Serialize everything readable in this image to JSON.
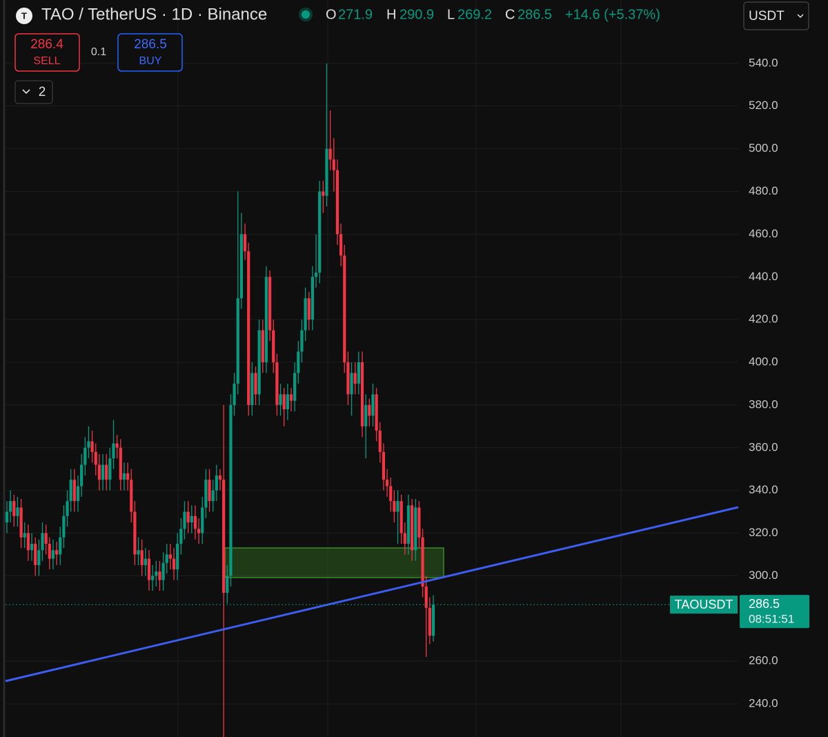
{
  "chart_data": {
    "type": "candlestick",
    "title": "TAO / TetherUS · 1D · Binance",
    "ohlc_labels": [
      "O",
      "H",
      "L",
      "C"
    ],
    "change": "+14.6 (+5.37%)",
    "currency": "USDT",
    "sell": {
      "price": 286.4,
      "label": "SELL"
    },
    "quantity": 0.1,
    "buy": {
      "price": 286.5,
      "label": "BUY"
    },
    "indicator_count": 2,
    "price_label": {
      "symbol": "TAOUSDT",
      "countdown": "08:51:51"
    },
    "up_color": "#089981",
    "down_color": "#f23645",
    "ylim": [
      224.5,
      569.7
    ],
    "yticks": [
      {
        "value": 240,
        "label": "240.0"
      },
      {
        "value": 260,
        "label": "260.0"
      },
      {
        "value": 300,
        "label": "300.0"
      },
      {
        "value": 320,
        "label": "320.0"
      },
      {
        "value": 340,
        "label": "340.0"
      },
      {
        "value": 360,
        "label": "360.0"
      },
      {
        "value": 380,
        "label": "380.0"
      },
      {
        "value": 400,
        "label": "400.0"
      },
      {
        "value": 420,
        "label": "420.0"
      },
      {
        "value": 440,
        "label": "440.0"
      },
      {
        "value": 460,
        "label": "460.0"
      },
      {
        "value": 480,
        "label": "480.0"
      },
      {
        "value": 500,
        "label": "500.0"
      },
      {
        "value": 520,
        "label": "520.0"
      },
      {
        "value": 540,
        "label": "540.0"
      }
    ],
    "grid": true,
    "candles": [
      [
        325,
        335,
        320,
        330
      ],
      [
        330,
        340,
        325,
        335
      ],
      [
        335,
        338,
        323,
        328
      ],
      [
        328,
        337,
        323,
        332
      ],
      [
        332,
        336,
        313,
        318
      ],
      [
        318,
        325,
        313,
        320
      ],
      [
        320,
        324,
        307,
        312
      ],
      [
        312,
        320,
        307,
        315
      ],
      [
        315,
        318,
        300,
        305
      ],
      [
        305,
        317,
        300,
        312
      ],
      [
        312,
        325,
        307,
        320
      ],
      [
        320,
        324,
        310,
        315
      ],
      [
        315,
        318,
        303,
        308
      ],
      [
        308,
        317,
        303,
        312
      ],
      [
        312,
        316,
        305,
        310
      ],
      [
        310,
        323,
        305,
        318
      ],
      [
        318,
        333,
        313,
        328
      ],
      [
        328,
        340,
        323,
        335
      ],
      [
        335,
        350,
        330,
        345
      ],
      [
        345,
        350,
        330,
        335
      ],
      [
        335,
        347,
        330,
        342
      ],
      [
        342,
        357,
        337,
        352
      ],
      [
        352,
        365,
        347,
        360
      ],
      [
        360,
        370,
        355,
        363
      ],
      [
        363,
        368,
        353,
        358
      ],
      [
        358,
        362,
        347,
        352
      ],
      [
        352,
        357,
        340,
        345
      ],
      [
        345,
        357,
        340,
        352
      ],
      [
        352,
        357,
        340,
        345
      ],
      [
        345,
        360,
        340,
        355
      ],
      [
        355,
        373,
        350,
        362
      ],
      [
        362,
        366,
        355,
        360
      ],
      [
        360,
        364,
        340,
        345
      ],
      [
        345,
        353,
        340,
        348
      ],
      [
        348,
        353,
        340,
        345
      ],
      [
        345,
        350,
        325,
        330
      ],
      [
        330,
        335,
        305,
        310
      ],
      [
        310,
        318,
        305,
        312
      ],
      [
        312,
        317,
        300,
        305
      ],
      [
        305,
        313,
        300,
        308
      ],
      [
        308,
        312,
        293,
        298
      ],
      [
        298,
        305,
        293,
        300
      ],
      [
        300,
        307,
        295,
        302
      ],
      [
        302,
        307,
        293,
        298
      ],
      [
        298,
        311,
        293,
        306
      ],
      [
        306,
        315,
        301,
        310
      ],
      [
        310,
        315,
        303,
        308
      ],
      [
        308,
        313,
        298,
        303
      ],
      [
        303,
        320,
        298,
        315
      ],
      [
        315,
        327,
        310,
        322
      ],
      [
        322,
        335,
        317,
        330
      ],
      [
        330,
        335,
        320,
        325
      ],
      [
        325,
        333,
        320,
        328
      ],
      [
        328,
        333,
        317,
        322
      ],
      [
        322,
        327,
        315,
        320
      ],
      [
        320,
        337,
        315,
        332
      ],
      [
        332,
        350,
        327,
        345
      ],
      [
        345,
        350,
        330,
        335
      ],
      [
        335,
        345,
        330,
        340
      ],
      [
        340,
        352,
        335,
        347
      ],
      [
        347,
        350,
        340,
        345
      ],
      [
        345,
        380,
        222,
        292
      ],
      [
        292,
        305,
        287,
        300
      ],
      [
        300,
        385,
        295,
        380
      ],
      [
        380,
        395,
        375,
        390
      ],
      [
        390,
        480,
        385,
        430
      ],
      [
        430,
        470,
        425,
        460
      ],
      [
        460,
        465,
        448,
        452
      ],
      [
        452,
        456,
        375,
        380
      ],
      [
        380,
        400,
        375,
        395
      ],
      [
        395,
        398,
        380,
        385
      ],
      [
        385,
        420,
        380,
        415
      ],
      [
        415,
        420,
        395,
        400
      ],
      [
        400,
        445,
        395,
        440
      ],
      [
        440,
        443,
        410,
        415
      ],
      [
        415,
        420,
        395,
        400
      ],
      [
        400,
        404,
        375,
        380
      ],
      [
        380,
        390,
        375,
        385
      ],
      [
        385,
        388,
        370,
        378
      ],
      [
        378,
        390,
        373,
        385
      ],
      [
        385,
        388,
        377,
        382
      ],
      [
        382,
        400,
        377,
        395
      ],
      [
        395,
        410,
        390,
        405
      ],
      [
        405,
        420,
        400,
        415
      ],
      [
        415,
        435,
        410,
        430
      ],
      [
        430,
        433,
        415,
        420
      ],
      [
        420,
        445,
        415,
        440
      ],
      [
        440,
        460,
        435,
        442
      ],
      [
        442,
        485,
        437,
        480
      ],
      [
        480,
        485,
        470,
        478
      ],
      [
        478,
        540,
        473,
        500
      ],
      [
        500,
        518,
        490,
        495
      ],
      [
        495,
        505,
        480,
        490
      ],
      [
        490,
        495,
        455,
        460
      ],
      [
        460,
        465,
        445,
        450
      ],
      [
        450,
        455,
        395,
        400
      ],
      [
        400,
        405,
        380,
        385
      ],
      [
        385,
        400,
        375,
        395
      ],
      [
        395,
        400,
        385,
        390
      ],
      [
        390,
        405,
        385,
        400
      ],
      [
        400,
        405,
        365,
        370
      ],
      [
        370,
        385,
        355,
        380
      ],
      [
        380,
        383,
        370,
        375
      ],
      [
        375,
        390,
        370,
        385
      ],
      [
        385,
        388,
        363,
        368
      ],
      [
        368,
        372,
        353,
        358
      ],
      [
        358,
        362,
        340,
        345
      ],
      [
        345,
        350,
        337,
        342
      ],
      [
        342,
        346,
        330,
        335
      ],
      [
        335,
        340,
        325,
        330
      ],
      [
        330,
        340,
        315,
        335
      ],
      [
        335,
        338,
        315,
        320
      ],
      [
        320,
        325,
        310,
        315
      ],
      [
        315,
        338,
        310,
        333
      ],
      [
        333,
        336,
        307,
        312
      ],
      [
        312,
        336,
        307,
        332
      ],
      [
        332,
        335,
        313,
        318
      ],
      [
        318,
        322,
        290,
        295
      ],
      [
        295,
        300,
        262,
        285
      ],
      [
        285,
        290,
        268,
        272
      ],
      [
        271.9,
        290.9,
        269.2,
        286.5
      ]
    ]
  }
}
